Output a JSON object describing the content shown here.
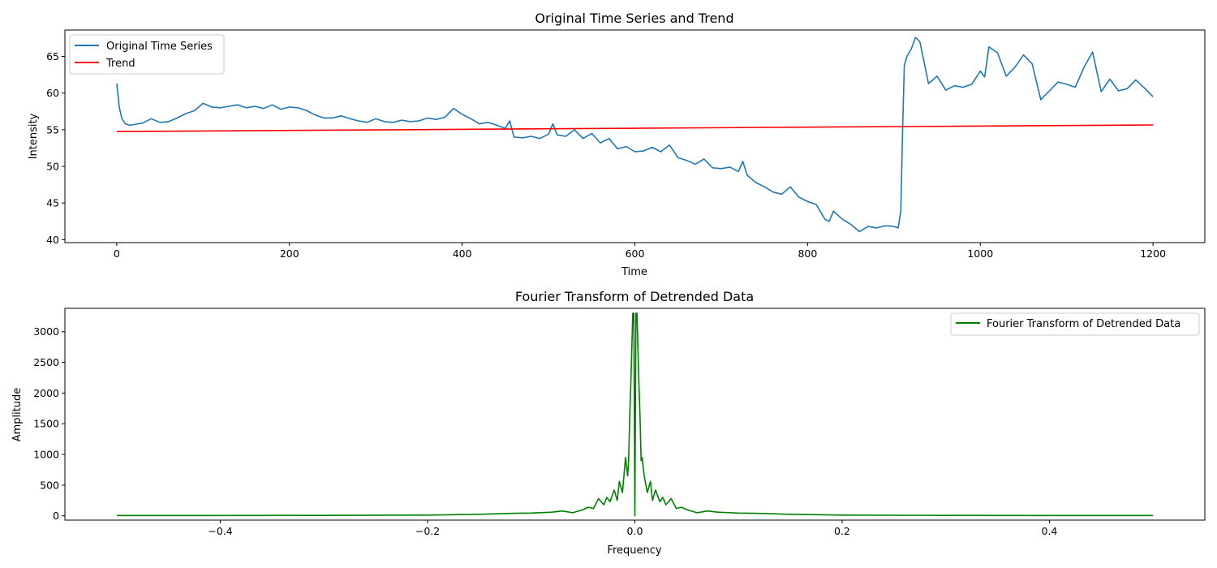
{
  "chart_data": [
    {
      "type": "line",
      "title": "Original Time Series and Trend",
      "xlabel": "Time",
      "ylabel": "Intensity",
      "xlim": [
        -60,
        1260
      ],
      "ylim": [
        39.6,
        68.6
      ],
      "xticks": [
        0,
        200,
        400,
        600,
        800,
        1000,
        1200
      ],
      "yticks": [
        40,
        45,
        50,
        55,
        60,
        65
      ],
      "grid": false,
      "legend": "top-left",
      "series": [
        {
          "name": "Original Time Series",
          "color": "#1f77b4",
          "x": [
            0,
            3,
            6,
            10,
            15,
            20,
            30,
            40,
            50,
            60,
            70,
            80,
            90,
            100,
            110,
            120,
            130,
            140,
            150,
            160,
            170,
            180,
            190,
            200,
            210,
            220,
            230,
            240,
            250,
            260,
            270,
            280,
            290,
            300,
            310,
            320,
            330,
            340,
            350,
            360,
            370,
            380,
            390,
            400,
            410,
            420,
            430,
            440,
            450,
            455,
            460,
            470,
            480,
            490,
            500,
            505,
            510,
            520,
            530,
            540,
            550,
            560,
            570,
            580,
            590,
            600,
            610,
            620,
            630,
            640,
            650,
            660,
            670,
            680,
            690,
            700,
            710,
            720,
            725,
            730,
            740,
            750,
            760,
            770,
            780,
            790,
            800,
            810,
            820,
            825,
            830,
            840,
            850,
            860,
            870,
            880,
            890,
            900,
            905,
            908,
            910,
            912,
            915,
            920,
            925,
            930,
            940,
            950,
            960,
            970,
            980,
            990,
            1000,
            1005,
            1010,
            1020,
            1030,
            1040,
            1050,
            1060,
            1070,
            1080,
            1090,
            1100,
            1110,
            1120,
            1130,
            1140,
            1150,
            1160,
            1170,
            1180,
            1190,
            1200
          ],
          "values": [
            61.3,
            58.0,
            56.5,
            55.8,
            55.6,
            55.7,
            55.9,
            56.5,
            56.0,
            56.1,
            56.6,
            57.2,
            57.6,
            58.6,
            58.1,
            58.0,
            58.2,
            58.4,
            58.0,
            58.2,
            57.9,
            58.4,
            57.8,
            58.1,
            58.0,
            57.6,
            57.0,
            56.6,
            56.6,
            56.9,
            56.5,
            56.2,
            56.0,
            56.5,
            56.1,
            56.0,
            56.3,
            56.1,
            56.2,
            56.6,
            56.4,
            56.7,
            57.9,
            57.1,
            56.5,
            55.8,
            56.0,
            55.6,
            55.2,
            56.2,
            54.0,
            53.9,
            54.1,
            53.8,
            54.4,
            55.8,
            54.3,
            54.1,
            55.0,
            53.8,
            54.5,
            53.2,
            53.8,
            52.4,
            52.7,
            52.0,
            52.1,
            52.6,
            52.0,
            52.9,
            51.2,
            50.8,
            50.3,
            51.0,
            49.8,
            49.7,
            49.9,
            49.3,
            50.7,
            48.8,
            47.8,
            47.2,
            46.5,
            46.2,
            47.2,
            45.8,
            45.2,
            44.8,
            42.8,
            42.5,
            43.9,
            42.8,
            42.1,
            41.1,
            41.8,
            41.6,
            41.9,
            41.8,
            41.6,
            44.0,
            55.0,
            63.8,
            65.0,
            66.0,
            67.6,
            67.0,
            61.3,
            62.3,
            60.4,
            61.0,
            60.8,
            61.2,
            63.0,
            62.2,
            66.3,
            65.5,
            62.3,
            63.5,
            65.2,
            64.0,
            59.1,
            60.3,
            61.5,
            61.2,
            60.8,
            63.5,
            65.6,
            60.2,
            61.9,
            60.3,
            60.6,
            61.8,
            60.7,
            59.5
          ]
        },
        {
          "name": "Trend",
          "color": "#ff0000",
          "x": [
            0,
            1200
          ],
          "values": [
            54.75,
            55.65
          ]
        }
      ]
    },
    {
      "type": "line",
      "title": "Fourier Transform of Detrended Data",
      "xlabel": "Frequency",
      "ylabel": "Amplitude",
      "xlim": [
        -0.55,
        0.55
      ],
      "ylim": [
        -70,
        3380
      ],
      "xticks": [
        -0.4,
        -0.2,
        0.0,
        0.2,
        0.4
      ],
      "xtick_labels": [
        "−0.4",
        "−0.2",
        "0.0",
        "0.2",
        "0.4"
      ],
      "yticks": [
        0,
        500,
        1000,
        1500,
        2000,
        2500,
        3000
      ],
      "grid": false,
      "legend": "top-right",
      "series": [
        {
          "name": "Fourier Transform of Detrended Data",
          "color": "#008000",
          "x": [
            -0.5,
            -0.4,
            -0.3,
            -0.2,
            -0.15,
            -0.12,
            -0.1,
            -0.08,
            -0.07,
            -0.06,
            -0.05,
            -0.045,
            -0.04,
            -0.035,
            -0.03,
            -0.027,
            -0.024,
            -0.02,
            -0.017,
            -0.015,
            -0.012,
            -0.009,
            -0.007,
            -0.006,
            -0.005,
            -0.004,
            -0.003,
            -0.002,
            -0.001,
            0.0,
            0.001,
            0.002,
            0.003,
            0.004,
            0.005,
            0.006,
            0.007,
            0.009,
            0.012,
            0.015,
            0.017,
            0.02,
            0.024,
            0.027,
            0.03,
            0.035,
            0.04,
            0.045,
            0.05,
            0.06,
            0.07,
            0.08,
            0.1,
            0.12,
            0.15,
            0.2,
            0.3,
            0.4,
            0.5
          ],
          "values": [
            5,
            6,
            7,
            12,
            25,
            40,
            45,
            60,
            80,
            50,
            100,
            140,
            120,
            280,
            180,
            300,
            230,
            420,
            250,
            560,
            380,
            950,
            650,
            900,
            1600,
            2100,
            2700,
            3300,
            3300,
            0,
            3300,
            3300,
            2700,
            2100,
            1600,
            900,
            950,
            650,
            380,
            560,
            250,
            420,
            230,
            300,
            180,
            280,
            120,
            140,
            100,
            50,
            80,
            60,
            45,
            40,
            25,
            12,
            7,
            6,
            5
          ]
        }
      ]
    }
  ]
}
